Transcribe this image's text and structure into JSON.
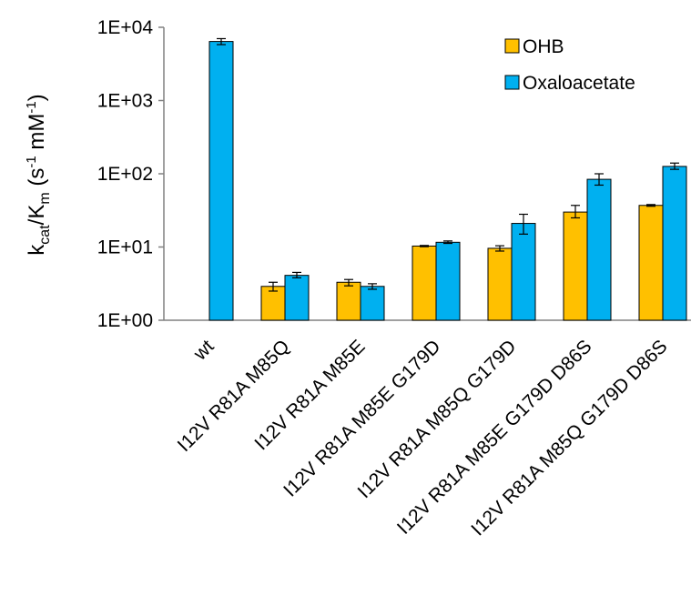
{
  "chart_data": {
    "type": "bar",
    "scale": "log",
    "ylim": [
      1,
      10000
    ],
    "yticks": [
      "1E+00",
      "1E+01",
      "1E+02",
      "1E+03",
      "1E+04"
    ],
    "ylabel": {
      "main": "k",
      "sub1": "cat",
      "slash": "/K",
      "sub2": "m",
      "units_open": " (s",
      "sup1": "-1",
      "units_mid": " mM",
      "sup2": "-1",
      "units_close": ")"
    },
    "categories": [
      "wt",
      "I12V R81A M85Q",
      "I12V R81A M85E",
      "I12V R81A M85E G179D",
      "I12V R81A M85Q G179D",
      "I12V R81A M85E G179D D86S",
      "I12V R81A M85Q G179D D86S"
    ],
    "series": [
      {
        "name": "OHB",
        "color": "#FFC000",
        "values": [
          null,
          2.9,
          3.3,
          10.3,
          9.6,
          30,
          37
        ],
        "err_low": [
          null,
          2.5,
          2.95,
          10.1,
          8.8,
          25,
          36
        ],
        "err_high": [
          null,
          3.3,
          3.6,
          10.5,
          10.4,
          37,
          38
        ]
      },
      {
        "name": "Oxaloacetate",
        "color": "#00B0F0",
        "values": [
          6400,
          4.1,
          2.9,
          11.6,
          21,
          84,
          126
        ],
        "err_low": [
          5800,
          3.8,
          2.65,
          11.2,
          15,
          70,
          115
        ],
        "err_high": [
          7000,
          4.5,
          3.15,
          12.1,
          28,
          100,
          140
        ]
      }
    ],
    "legend_position": "top-right",
    "grid": false
  }
}
